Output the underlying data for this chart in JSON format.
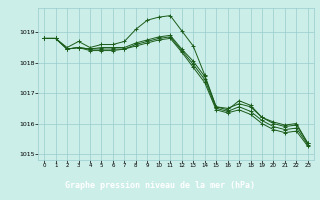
{
  "title": "Graphe pression niveau de la mer (hPa)",
  "background_color": "#cceee8",
  "grid_color": "#99cccc",
  "line_color": "#1a5c1a",
  "label_bg_color": "#2d7a2d",
  "label_text_color": "#ffffff",
  "xlim": [
    -0.5,
    23.5
  ],
  "ylim": [
    1014.8,
    1019.8
  ],
  "yticks": [
    1015,
    1016,
    1017,
    1018,
    1019
  ],
  "xticks": [
    0,
    1,
    2,
    3,
    4,
    5,
    6,
    7,
    8,
    9,
    10,
    11,
    12,
    13,
    14,
    15,
    16,
    17,
    18,
    19,
    20,
    21,
    22,
    23
  ],
  "series": [
    [
      1018.8,
      1018.8,
      1018.5,
      1018.7,
      1018.5,
      1018.6,
      1018.6,
      1018.7,
      1019.1,
      1019.4,
      1019.5,
      1019.55,
      1019.05,
      1018.55,
      1017.6,
      1016.55,
      1016.45,
      1016.75,
      1016.6,
      1016.2,
      1016.05,
      1015.95,
      1016.0,
      1015.35
    ],
    [
      1018.8,
      1018.8,
      1018.45,
      1018.5,
      1018.45,
      1018.5,
      1018.5,
      1018.5,
      1018.65,
      1018.75,
      1018.85,
      1018.9,
      1018.45,
      1018.05,
      1017.55,
      1016.55,
      1016.5,
      1016.65,
      1016.55,
      1016.2,
      1016.0,
      1015.9,
      1015.95,
      1015.35
    ],
    [
      1018.8,
      1018.8,
      1018.45,
      1018.5,
      1018.45,
      1018.45,
      1018.45,
      1018.45,
      1018.6,
      1018.7,
      1018.8,
      1018.85,
      1018.4,
      1017.95,
      1017.45,
      1016.5,
      1016.4,
      1016.55,
      1016.4,
      1016.1,
      1015.9,
      1015.8,
      1015.85,
      1015.3
    ],
    [
      1018.8,
      1018.8,
      1018.45,
      1018.5,
      1018.4,
      1018.4,
      1018.4,
      1018.45,
      1018.55,
      1018.65,
      1018.75,
      1018.8,
      1018.35,
      1017.85,
      1017.35,
      1016.45,
      1016.35,
      1016.45,
      1016.3,
      1016.0,
      1015.8,
      1015.7,
      1015.75,
      1015.25
    ]
  ]
}
